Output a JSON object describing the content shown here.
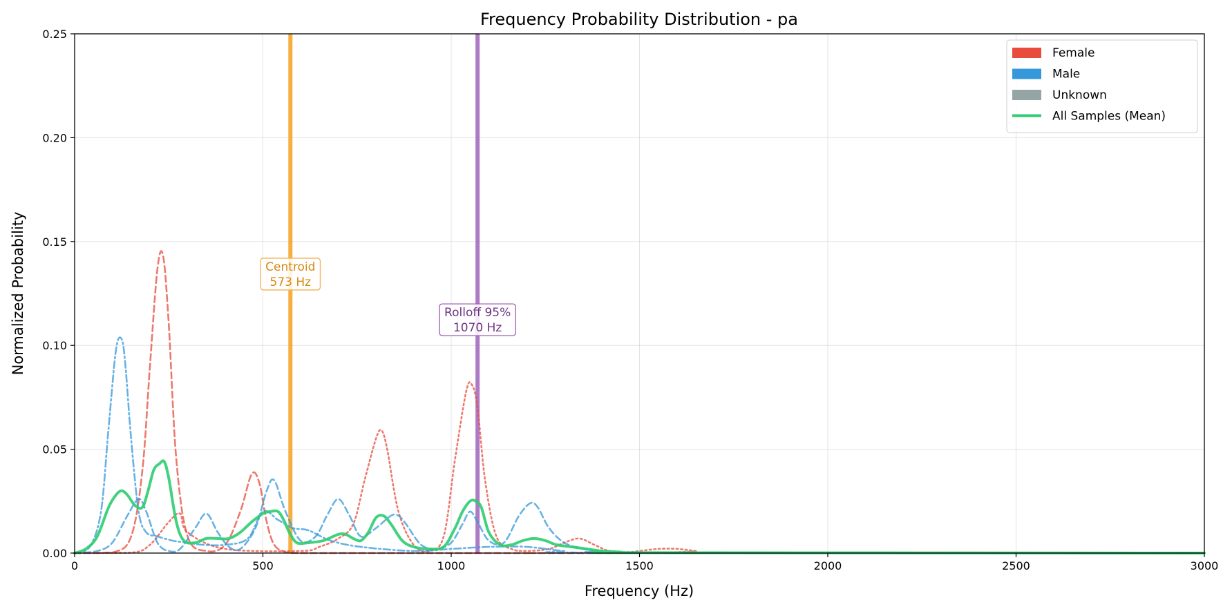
{
  "chart_data": {
    "type": "line",
    "title": "Frequency Probability Distribution - pa",
    "xlabel": "Frequency (Hz)",
    "ylabel": "Normalized Probability",
    "xlim": [
      0,
      3000
    ],
    "ylim": [
      0,
      0.25
    ],
    "xticks": [
      0,
      500,
      1000,
      1500,
      2000,
      2500,
      3000
    ],
    "xtick_labels": [
      "0",
      "500",
      "1000",
      "1500",
      "2000",
      "2500",
      "3000"
    ],
    "yticks": [
      0,
      0.05,
      0.1,
      0.15,
      0.2,
      0.25
    ],
    "ytick_labels": [
      "0.00",
      "0.05",
      "0.10",
      "0.15",
      "0.20",
      "0.25"
    ],
    "grid": true,
    "legend": {
      "placement": "top-right",
      "entries": [
        {
          "label": "Female",
          "color": "#e74c3c",
          "kind": "patch"
        },
        {
          "label": "Male",
          "color": "#3498db",
          "kind": "patch"
        },
        {
          "label": "Unknown",
          "color": "#95a5a6",
          "kind": "patch"
        },
        {
          "label": "All Samples (Mean)",
          "color": "#2ecc71",
          "kind": "line"
        }
      ]
    },
    "series": [
      {
        "group": "Female",
        "color": "#e74c3c",
        "style": "dashed",
        "opacity": 0.75,
        "x": [
          0,
          100,
          150,
          180,
          200,
          220,
          235,
          250,
          270,
          300,
          350,
          400,
          440,
          470,
          490,
          510,
          530,
          560,
          600,
          800,
          1000,
          1200,
          1400,
          3000
        ],
        "y": [
          0,
          0.0003,
          0.008,
          0.04,
          0.09,
          0.137,
          0.143,
          0.11,
          0.045,
          0.008,
          0.001,
          0.004,
          0.02,
          0.038,
          0.034,
          0.015,
          0.004,
          0.0005,
          0,
          0,
          0,
          0,
          0,
          0
        ]
      },
      {
        "group": "Female",
        "color": "#e74c3c",
        "style": "dotted",
        "opacity": 0.75,
        "x": [
          0,
          150,
          200,
          250,
          280,
          300,
          400,
          600,
          650,
          700,
          740,
          770,
          800,
          815,
          830,
          860,
          900,
          940,
          980,
          1010,
          1040,
          1055,
          1070,
          1090,
          1120,
          1160,
          1200,
          1260,
          1300,
          1340,
          1380,
          1420,
          1470,
          1500,
          1550,
          1600,
          1650,
          1700,
          3000
        ],
        "y": [
          0,
          0.0002,
          0.004,
          0.015,
          0.019,
          0.01,
          0.002,
          0.001,
          0.003,
          0.007,
          0.014,
          0.035,
          0.055,
          0.059,
          0.05,
          0.02,
          0.004,
          0.001,
          0.008,
          0.045,
          0.078,
          0.081,
          0.07,
          0.035,
          0.008,
          0.002,
          0.001,
          0.002,
          0.005,
          0.007,
          0.004,
          0.001,
          0.0005,
          0.001,
          0.002,
          0.002,
          0.001,
          0,
          0
        ]
      },
      {
        "group": "Male",
        "color": "#3498db",
        "style": "dashdot",
        "opacity": 0.75,
        "x": [
          0,
          40,
          70,
          90,
          110,
          125,
          135,
          150,
          170,
          190,
          220,
          260,
          300,
          340,
          400,
          460,
          500,
          540,
          580,
          620,
          680,
          760,
          900,
          1000,
          1100,
          1200,
          1300,
          1400,
          3000
        ],
        "y": [
          0,
          0.003,
          0.02,
          0.06,
          0.098,
          0.103,
          0.09,
          0.055,
          0.02,
          0.01,
          0.008,
          0.006,
          0.005,
          0.004,
          0.004,
          0.007,
          0.02,
          0.016,
          0.012,
          0.011,
          0.006,
          0.003,
          0.001,
          0.002,
          0.003,
          0.003,
          0.001,
          0.0002,
          0
        ]
      },
      {
        "group": "Male",
        "color": "#3498db",
        "style": "dashed",
        "opacity": 0.75,
        "x": [
          0,
          60,
          100,
          140,
          170,
          190,
          220,
          250,
          280,
          320,
          350,
          380,
          410,
          440,
          480,
          510,
          530,
          560,
          600,
          640,
          670,
          700,
          730,
          760,
          800,
          840,
          860,
          880,
          920,
          960,
          1000,
          1030,
          1050,
          1070,
          1100,
          1140,
          1180,
          1210,
          1230,
          1260,
          1300,
          1350,
          1400,
          1500,
          3000
        ],
        "y": [
          0,
          0.001,
          0.005,
          0.018,
          0.026,
          0.02,
          0.005,
          0.001,
          0.002,
          0.012,
          0.019,
          0.01,
          0.003,
          0.002,
          0.012,
          0.03,
          0.035,
          0.02,
          0.006,
          0.008,
          0.018,
          0.026,
          0.018,
          0.008,
          0.012,
          0.018,
          0.018,
          0.014,
          0.004,
          0.002,
          0.005,
          0.014,
          0.02,
          0.015,
          0.006,
          0.005,
          0.018,
          0.024,
          0.022,
          0.012,
          0.005,
          0.002,
          0.001,
          0.0003,
          0
        ]
      },
      {
        "group": "All Samples (Mean)",
        "color": "#2ecc71",
        "style": "solid",
        "opacity": 0.9,
        "width": 4,
        "x": [
          0,
          30,
          60,
          90,
          110,
          125,
          140,
          160,
          180,
          195,
          210,
          225,
          238,
          250,
          270,
          290,
          320,
          350,
          380,
          410,
          440,
          470,
          500,
          520,
          540,
          555,
          570,
          590,
          620,
          660,
          700,
          720,
          740,
          760,
          780,
          800,
          820,
          840,
          870,
          900,
          940,
          980,
          1010,
          1030,
          1050,
          1065,
          1080,
          1100,
          1130,
          1160,
          1190,
          1220,
          1250,
          1280,
          1320,
          1360,
          1400,
          1450,
          1500,
          3000
        ],
        "y": [
          0,
          0.002,
          0.008,
          0.022,
          0.028,
          0.03,
          0.028,
          0.023,
          0.022,
          0.03,
          0.04,
          0.043,
          0.044,
          0.036,
          0.015,
          0.006,
          0.005,
          0.007,
          0.007,
          0.007,
          0.01,
          0.015,
          0.019,
          0.02,
          0.02,
          0.016,
          0.01,
          0.005,
          0.005,
          0.006,
          0.009,
          0.009,
          0.007,
          0.006,
          0.01,
          0.017,
          0.018,
          0.014,
          0.006,
          0.003,
          0.002,
          0.003,
          0.012,
          0.02,
          0.025,
          0.025,
          0.022,
          0.01,
          0.004,
          0.004,
          0.006,
          0.007,
          0.006,
          0.004,
          0.003,
          0.002,
          0.001,
          0.0005,
          0.0002,
          0
        ]
      }
    ],
    "annotations": [
      {
        "label_line1": "Centroid",
        "label_line2": "573 Hz",
        "x": 573,
        "text_y": 0.135,
        "line_color": "#f39c12",
        "text_color": "#d68910",
        "box_color": "#f0b050"
      },
      {
        "label_line1": "Rolloff 95%",
        "label_line2": "1070 Hz",
        "x": 1070,
        "text_y": 0.113,
        "line_color": "#9b59b6",
        "text_color": "#6c3483",
        "box_color": "#9b59b6"
      }
    ]
  }
}
